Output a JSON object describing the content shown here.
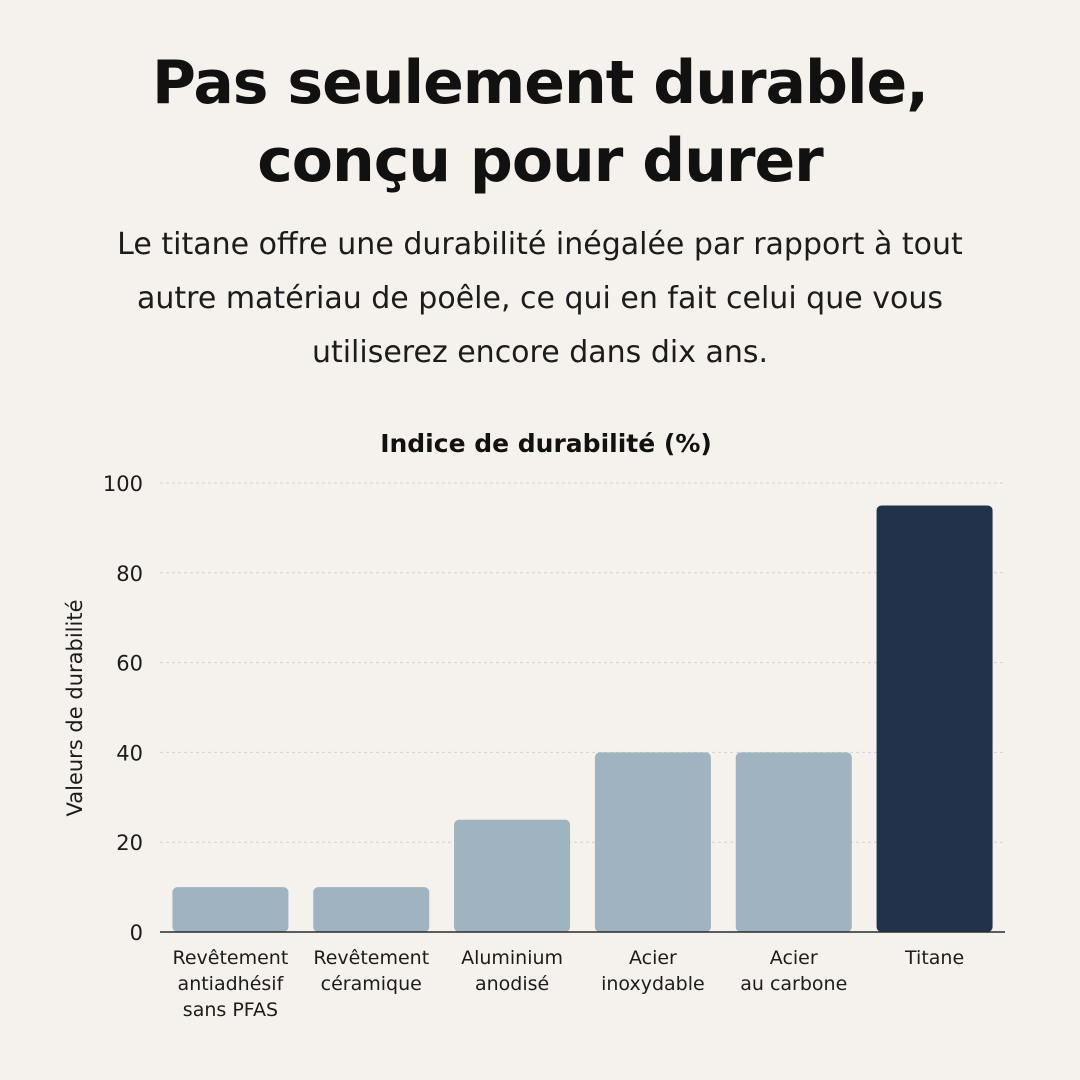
{
  "header": {
    "title_line1": "Pas seulement durable,",
    "title_line2": "conçu pour durer",
    "subtitle": "Le titane offre une durabilité inégalée par rapport à tout autre matériau de poêle, ce qui en fait celui que vous utiliserez encore dans dix ans."
  },
  "chart_data": {
    "type": "bar",
    "title": "Indice de durabilité (%)",
    "xlabel": "",
    "ylabel": "Valeurs de durabilité",
    "ylim": [
      0,
      100
    ],
    "yticks": [
      0,
      20,
      40,
      60,
      80,
      100
    ],
    "grid": true,
    "categories": [
      [
        "Revêtement",
        "antiadhésif",
        "sans PFAS"
      ],
      [
        "Revêtement",
        "céramique"
      ],
      [
        "Aluminium",
        "anodisé"
      ],
      [
        "Acier",
        "inoxydable"
      ],
      [
        "Acier",
        "au carbone"
      ],
      [
        "Titane"
      ]
    ],
    "values": [
      10,
      10,
      25,
      40,
      40,
      95
    ],
    "colors": {
      "default": "#9fb3c1",
      "highlight": "#22324a",
      "grid": "#d6d1cb",
      "axis": "#2a2a2a"
    },
    "highlight_index": 5
  }
}
